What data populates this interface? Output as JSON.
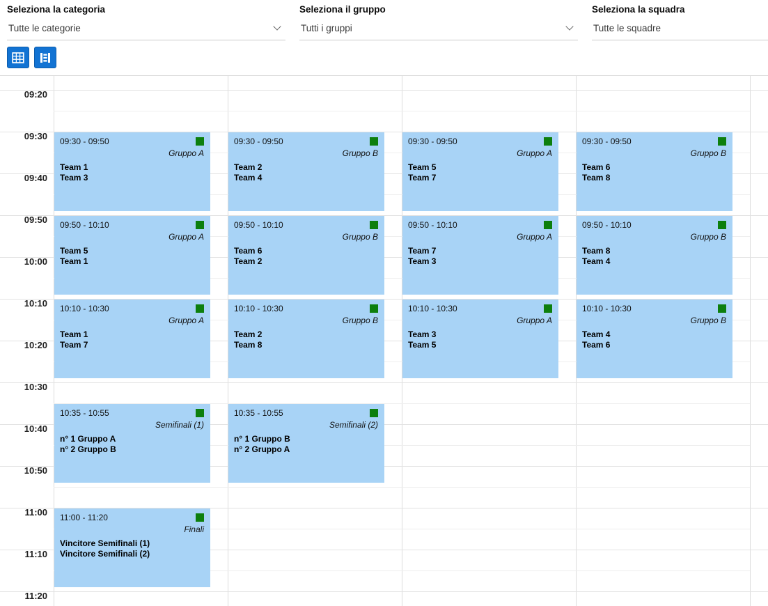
{
  "filters": [
    {
      "label": "Seleziona la categoria",
      "value": "Tutte le categorie",
      "chevron": true
    },
    {
      "label": "Seleziona il gruppo",
      "value": "Tutti i gruppi",
      "chevron": true
    },
    {
      "label": "Seleziona la squadra",
      "value": "Tutte le squadre",
      "chevron": false
    }
  ],
  "toolbar": {
    "buttons": [
      {
        "icon": "grid-view-icon"
      },
      {
        "icon": "timeline-view-icon"
      }
    ]
  },
  "colors": {
    "event_background": "#a8d3f6",
    "event_marker_green": "#0d7f0d",
    "button_blue": "#1273d3"
  },
  "schedule": {
    "base_time": "09:20",
    "columns": 4,
    "times": [
      "09:20",
      "09:30",
      "09:40",
      "09:50",
      "10:00",
      "10:10",
      "10:20",
      "10:30",
      "10:40",
      "10:50",
      "11:00",
      "11:10",
      "11:20"
    ],
    "events": [
      {
        "col": 0,
        "start": "09:30",
        "end": "09:50",
        "time_label": "09:30 - 09:50",
        "tag": "Gruppo A",
        "lines": [
          "Team 1",
          "Team 3"
        ]
      },
      {
        "col": 1,
        "start": "09:30",
        "end": "09:50",
        "time_label": "09:30 - 09:50",
        "tag": "Gruppo B",
        "lines": [
          "Team 2",
          "Team 4"
        ]
      },
      {
        "col": 2,
        "start": "09:30",
        "end": "09:50",
        "time_label": "09:30 - 09:50",
        "tag": "Gruppo A",
        "lines": [
          "Team 5",
          "Team 7"
        ]
      },
      {
        "col": 3,
        "start": "09:30",
        "end": "09:50",
        "time_label": "09:30 - 09:50",
        "tag": "Gruppo B",
        "lines": [
          "Team 6",
          "Team 8"
        ]
      },
      {
        "col": 0,
        "start": "09:50",
        "end": "10:10",
        "time_label": "09:50 - 10:10",
        "tag": "Gruppo A",
        "lines": [
          "Team 5",
          "Team 1"
        ]
      },
      {
        "col": 1,
        "start": "09:50",
        "end": "10:10",
        "time_label": "09:50 - 10:10",
        "tag": "Gruppo B",
        "lines": [
          "Team 6",
          "Team 2"
        ]
      },
      {
        "col": 2,
        "start": "09:50",
        "end": "10:10",
        "time_label": "09:50 - 10:10",
        "tag": "Gruppo A",
        "lines": [
          "Team 7",
          "Team 3"
        ]
      },
      {
        "col": 3,
        "start": "09:50",
        "end": "10:10",
        "time_label": "09:50 - 10:10",
        "tag": "Gruppo B",
        "lines": [
          "Team 8",
          "Team 4"
        ]
      },
      {
        "col": 0,
        "start": "10:10",
        "end": "10:30",
        "time_label": "10:10 - 10:30",
        "tag": "Gruppo A",
        "lines": [
          "Team 1",
          "Team 7"
        ]
      },
      {
        "col": 1,
        "start": "10:10",
        "end": "10:30",
        "time_label": "10:10 - 10:30",
        "tag": "Gruppo B",
        "lines": [
          "Team 2",
          "Team 8"
        ]
      },
      {
        "col": 2,
        "start": "10:10",
        "end": "10:30",
        "time_label": "10:10 - 10:30",
        "tag": "Gruppo A",
        "lines": [
          "Team 3",
          "Team 5"
        ]
      },
      {
        "col": 3,
        "start": "10:10",
        "end": "10:30",
        "time_label": "10:10 - 10:30",
        "tag": "Gruppo B",
        "lines": [
          "Team 4",
          "Team 6"
        ]
      },
      {
        "col": 0,
        "start": "10:35",
        "end": "10:55",
        "time_label": "10:35 - 10:55",
        "tag": "Semifinali (1)",
        "lines": [
          "n° 1 Gruppo A",
          "n° 2 Gruppo B"
        ]
      },
      {
        "col": 1,
        "start": "10:35",
        "end": "10:55",
        "time_label": "10:35 - 10:55",
        "tag": "Semifinali (2)",
        "lines": [
          "n° 1 Gruppo B",
          "n° 2 Gruppo A"
        ]
      },
      {
        "col": 0,
        "start": "11:00",
        "end": "11:20",
        "time_label": "11:00 - 11:20",
        "tag": "Finali",
        "lines": [
          "Vincitore Semifinali (1)",
          "Vincitore Semifinali (2)"
        ]
      }
    ]
  }
}
